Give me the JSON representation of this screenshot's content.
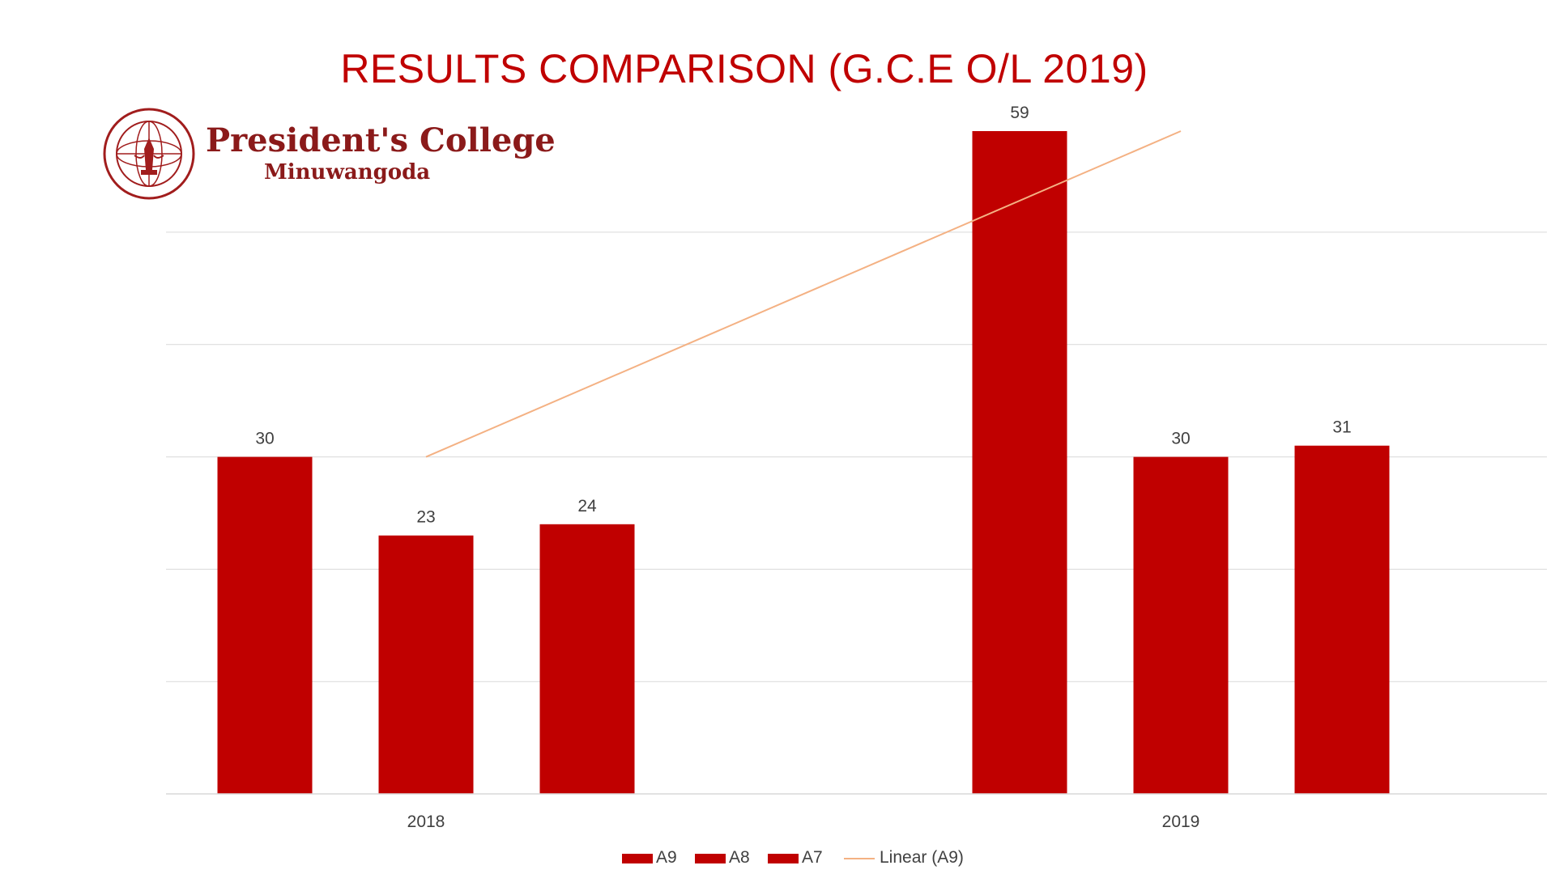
{
  "logo": {
    "name": "President's College",
    "town": "Minuwangoda"
  },
  "chart_data": {
    "type": "bar",
    "title": "RESULTS COMPARISON (G.C.E O/L 2019)",
    "categories": [
      "2018",
      "2019"
    ],
    "series": [
      {
        "name": "A9",
        "values": [
          30,
          59
        ],
        "color": "#c00000"
      },
      {
        "name": "A8",
        "values": [
          23,
          30
        ],
        "color": "#c00000"
      },
      {
        "name": "A7",
        "values": [
          24,
          31
        ],
        "color": "#c00000"
      }
    ],
    "trendline": {
      "name": "Linear (A9)",
      "series": "A9",
      "color": "#f4b183",
      "values": [
        30,
        59
      ]
    },
    "ylim": [
      0,
      70
    ],
    "grid": true,
    "legend": "bottom",
    "data_labels": true
  }
}
